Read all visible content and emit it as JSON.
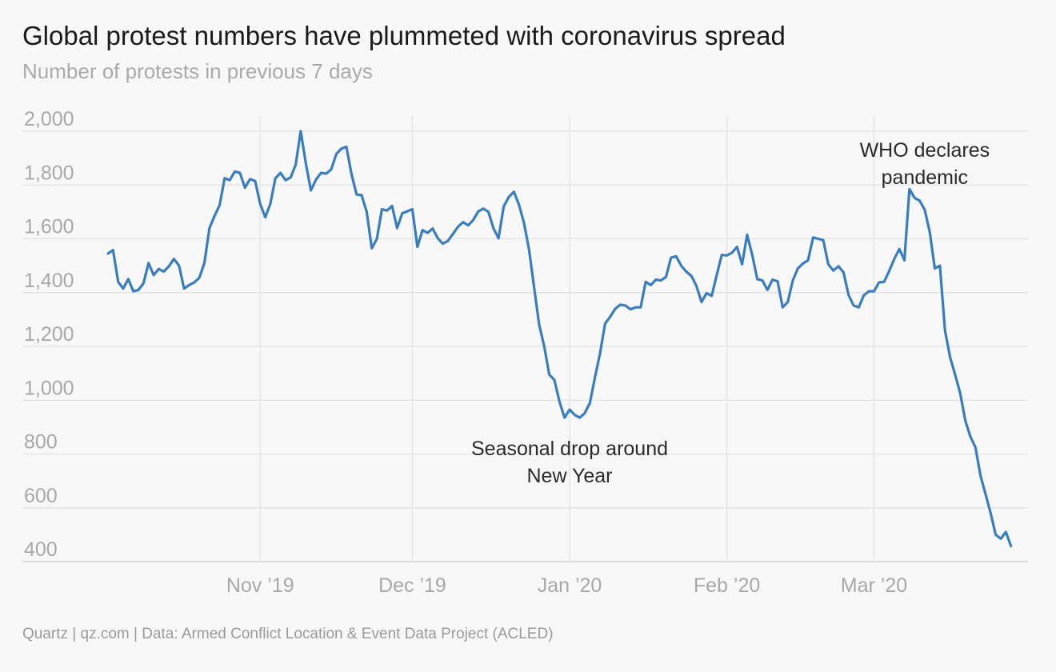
{
  "title": "Global protest numbers have plummeted with coronavirus spread",
  "subtitle": "Number of protests in previous 7 days",
  "source": "Quartz | qz.com | Data: Armed Conflict Location & Event Data Project (ACLED)",
  "colors": {
    "line": "#3a7dbf",
    "grid": "#e2e2e2",
    "background": "#f8f8f8"
  },
  "chart_data": {
    "type": "line",
    "title": "Global protest numbers have plummeted with coronavirus spread",
    "ylabel": "Number of protests in previous 7 days",
    "ylim": [
      400,
      2000
    ],
    "yticks": [
      2000,
      1800,
      1600,
      1400,
      1200,
      1000,
      800,
      600,
      400
    ],
    "ytick_labels": [
      "2,000",
      "1,800",
      "1,600",
      "1,400",
      "1,200",
      "1,000",
      "800",
      "600",
      "400"
    ],
    "xlim": [
      "2019-10-02",
      "2020-03-29"
    ],
    "xticks": [
      "2019-11-01",
      "2019-12-01",
      "2020-01-01",
      "2020-02-01",
      "2020-03-01"
    ],
    "xtick_labels": [
      "Nov ’19",
      "Dec ’19",
      "Jan ’20",
      "Feb ’20",
      "Mar ’20"
    ],
    "grid": true,
    "annotations": [
      {
        "lines": [
          "Seasonal drop around",
          "New Year"
        ],
        "date": "2020-01-01",
        "value": 795
      },
      {
        "lines": [
          "WHO declares",
          "pandemic"
        ],
        "date": "2020-03-11",
        "value": 1905
      }
    ],
    "series": [
      {
        "color": "#3a7dbf",
        "points": [
          [
            "2019-10-02",
            1545
          ],
          [
            "2019-10-03",
            1558
          ],
          [
            "2019-10-04",
            1440
          ],
          [
            "2019-10-05",
            1415
          ],
          [
            "2019-10-06",
            1450
          ],
          [
            "2019-10-07",
            1405
          ],
          [
            "2019-10-08",
            1410
          ],
          [
            "2019-10-09",
            1435
          ],
          [
            "2019-10-10",
            1510
          ],
          [
            "2019-10-11",
            1465
          ],
          [
            "2019-10-12",
            1488
          ],
          [
            "2019-10-13",
            1478
          ],
          [
            "2019-10-14",
            1498
          ],
          [
            "2019-10-15",
            1525
          ],
          [
            "2019-10-16",
            1500
          ],
          [
            "2019-10-17",
            1415
          ],
          [
            "2019-10-18",
            1428
          ],
          [
            "2019-10-19",
            1438
          ],
          [
            "2019-10-20",
            1455
          ],
          [
            "2019-10-21",
            1510
          ],
          [
            "2019-10-22",
            1640
          ],
          [
            "2019-10-23",
            1685
          ],
          [
            "2019-10-24",
            1725
          ],
          [
            "2019-10-25",
            1825
          ],
          [
            "2019-10-26",
            1818
          ],
          [
            "2019-10-27",
            1850
          ],
          [
            "2019-10-28",
            1845
          ],
          [
            "2019-10-29",
            1790
          ],
          [
            "2019-10-30",
            1822
          ],
          [
            "2019-10-31",
            1815
          ],
          [
            "2019-11-01",
            1730
          ],
          [
            "2019-11-02",
            1680
          ],
          [
            "2019-11-03",
            1730
          ],
          [
            "2019-11-04",
            1825
          ],
          [
            "2019-11-05",
            1845
          ],
          [
            "2019-11-06",
            1818
          ],
          [
            "2019-11-07",
            1828
          ],
          [
            "2019-11-08",
            1875
          ],
          [
            "2019-11-09",
            2000
          ],
          [
            "2019-11-10",
            1880
          ],
          [
            "2019-11-11",
            1780
          ],
          [
            "2019-11-12",
            1820
          ],
          [
            "2019-11-13",
            1845
          ],
          [
            "2019-11-14",
            1842
          ],
          [
            "2019-11-15",
            1858
          ],
          [
            "2019-11-16",
            1915
          ],
          [
            "2019-11-17",
            1935
          ],
          [
            "2019-11-18",
            1942
          ],
          [
            "2019-11-19",
            1840
          ],
          [
            "2019-11-20",
            1765
          ],
          [
            "2019-11-21",
            1762
          ],
          [
            "2019-11-22",
            1700
          ],
          [
            "2019-11-23",
            1565
          ],
          [
            "2019-11-24",
            1600
          ],
          [
            "2019-11-25",
            1710
          ],
          [
            "2019-11-26",
            1705
          ],
          [
            "2019-11-27",
            1722
          ],
          [
            "2019-11-28",
            1640
          ],
          [
            "2019-11-29",
            1695
          ],
          [
            "2019-11-30",
            1702
          ],
          [
            "2019-12-01",
            1710
          ],
          [
            "2019-12-02",
            1570
          ],
          [
            "2019-12-03",
            1632
          ],
          [
            "2019-12-04",
            1622
          ],
          [
            "2019-12-05",
            1638
          ],
          [
            "2019-12-06",
            1602
          ],
          [
            "2019-12-07",
            1582
          ],
          [
            "2019-12-08",
            1592
          ],
          [
            "2019-12-09",
            1618
          ],
          [
            "2019-12-10",
            1645
          ],
          [
            "2019-12-11",
            1662
          ],
          [
            "2019-12-12",
            1650
          ],
          [
            "2019-12-13",
            1670
          ],
          [
            "2019-12-14",
            1702
          ],
          [
            "2019-12-15",
            1712
          ],
          [
            "2019-12-16",
            1700
          ],
          [
            "2019-12-17",
            1638
          ],
          [
            "2019-12-18",
            1602
          ],
          [
            "2019-12-19",
            1720
          ],
          [
            "2019-12-20",
            1755
          ],
          [
            "2019-12-21",
            1775
          ],
          [
            "2019-12-22",
            1728
          ],
          [
            "2019-12-23",
            1660
          ],
          [
            "2019-12-24",
            1560
          ],
          [
            "2019-12-25",
            1420
          ],
          [
            "2019-12-26",
            1280
          ],
          [
            "2019-12-27",
            1200
          ],
          [
            "2019-12-28",
            1095
          ],
          [
            "2019-12-29",
            1075
          ],
          [
            "2019-12-30",
            995
          ],
          [
            "2019-12-31",
            935
          ],
          [
            "2020-01-01",
            965
          ],
          [
            "2020-01-02",
            945
          ],
          [
            "2020-01-03",
            935
          ],
          [
            "2020-01-04",
            952
          ],
          [
            "2020-01-05",
            990
          ],
          [
            "2020-01-06",
            1085
          ],
          [
            "2020-01-07",
            1175
          ],
          [
            "2020-01-08",
            1285
          ],
          [
            "2020-01-09",
            1310
          ],
          [
            "2020-01-10",
            1340
          ],
          [
            "2020-01-11",
            1355
          ],
          [
            "2020-01-12",
            1352
          ],
          [
            "2020-01-13",
            1338
          ],
          [
            "2020-01-14",
            1345
          ],
          [
            "2020-01-15",
            1345
          ],
          [
            "2020-01-16",
            1440
          ],
          [
            "2020-01-17",
            1428
          ],
          [
            "2020-01-18",
            1448
          ],
          [
            "2020-01-19",
            1445
          ],
          [
            "2020-01-20",
            1458
          ],
          [
            "2020-01-21",
            1530
          ],
          [
            "2020-01-22",
            1535
          ],
          [
            "2020-01-23",
            1500
          ],
          [
            "2020-01-24",
            1478
          ],
          [
            "2020-01-25",
            1462
          ],
          [
            "2020-01-26",
            1425
          ],
          [
            "2020-01-27",
            1365
          ],
          [
            "2020-01-28",
            1398
          ],
          [
            "2020-01-29",
            1388
          ],
          [
            "2020-01-30",
            1465
          ],
          [
            "2020-01-31",
            1540
          ],
          [
            "2020-02-01",
            1538
          ],
          [
            "2020-02-02",
            1548
          ],
          [
            "2020-02-03",
            1570
          ],
          [
            "2020-02-04",
            1505
          ],
          [
            "2020-02-05",
            1615
          ],
          [
            "2020-02-06",
            1540
          ],
          [
            "2020-02-07",
            1450
          ],
          [
            "2020-02-08",
            1445
          ],
          [
            "2020-02-09",
            1410
          ],
          [
            "2020-02-10",
            1448
          ],
          [
            "2020-02-11",
            1442
          ],
          [
            "2020-02-12",
            1345
          ],
          [
            "2020-02-13",
            1365
          ],
          [
            "2020-02-14",
            1445
          ],
          [
            "2020-02-15",
            1490
          ],
          [
            "2020-02-16",
            1508
          ],
          [
            "2020-02-17",
            1520
          ],
          [
            "2020-02-18",
            1605
          ],
          [
            "2020-02-19",
            1600
          ],
          [
            "2020-02-20",
            1595
          ],
          [
            "2020-02-21",
            1505
          ],
          [
            "2020-02-22",
            1482
          ],
          [
            "2020-02-23",
            1498
          ],
          [
            "2020-02-24",
            1475
          ],
          [
            "2020-02-25",
            1390
          ],
          [
            "2020-02-26",
            1352
          ],
          [
            "2020-02-27",
            1345
          ],
          [
            "2020-02-28",
            1390
          ],
          [
            "2020-02-29",
            1405
          ],
          [
            "2020-03-01",
            1405
          ],
          [
            "2020-03-02",
            1438
          ],
          [
            "2020-03-03",
            1440
          ],
          [
            "2020-03-04",
            1480
          ],
          [
            "2020-03-05",
            1525
          ],
          [
            "2020-03-06",
            1562
          ],
          [
            "2020-03-07",
            1520
          ],
          [
            "2020-03-08",
            1785
          ],
          [
            "2020-03-09",
            1752
          ],
          [
            "2020-03-10",
            1742
          ],
          [
            "2020-03-11",
            1708
          ],
          [
            "2020-03-12",
            1625
          ],
          [
            "2020-03-13",
            1490
          ],
          [
            "2020-03-14",
            1500
          ],
          [
            "2020-03-15",
            1260
          ],
          [
            "2020-03-16",
            1160
          ],
          [
            "2020-03-17",
            1095
          ],
          [
            "2020-03-18",
            1025
          ],
          [
            "2020-03-19",
            925
          ],
          [
            "2020-03-20",
            865
          ],
          [
            "2020-03-21",
            825
          ],
          [
            "2020-03-22",
            720
          ],
          [
            "2020-03-23",
            650
          ],
          [
            "2020-03-24",
            580
          ],
          [
            "2020-03-25",
            500
          ],
          [
            "2020-03-26",
            485
          ],
          [
            "2020-03-27",
            510
          ],
          [
            "2020-03-28",
            458
          ]
        ]
      }
    ]
  }
}
